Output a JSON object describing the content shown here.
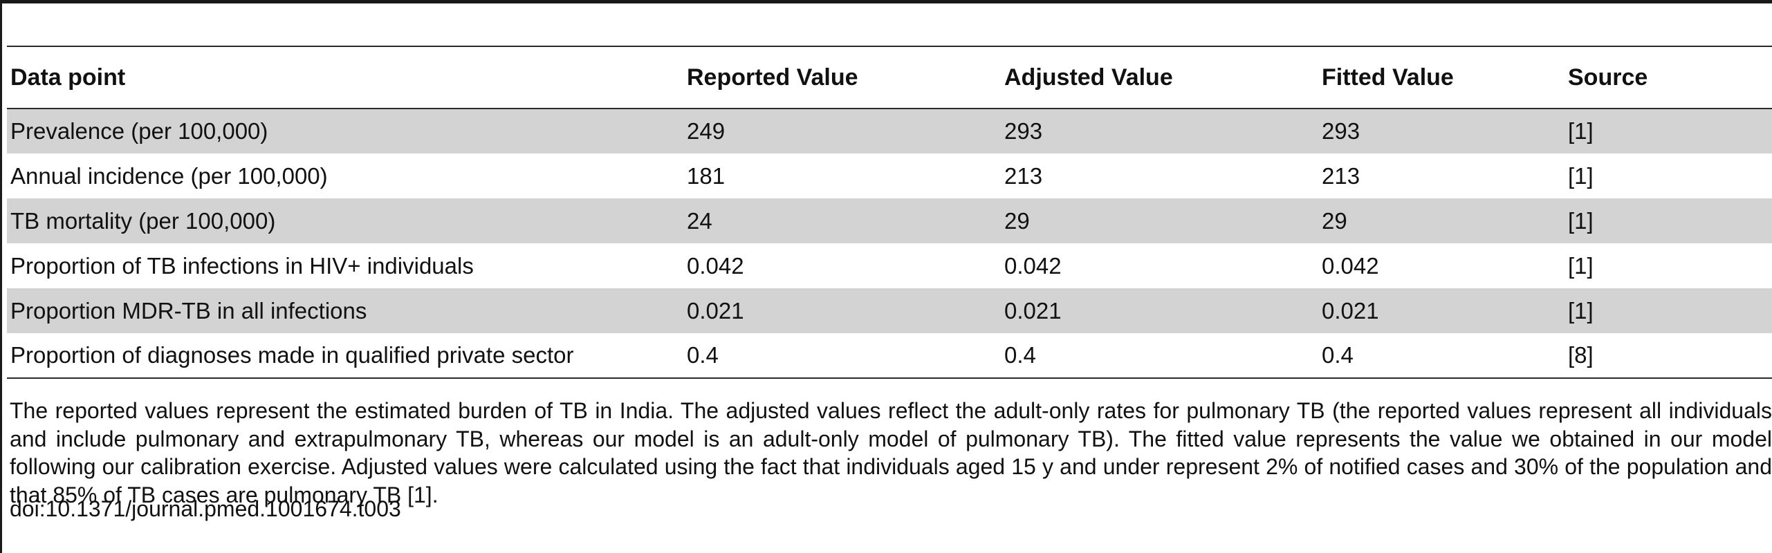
{
  "table": {
    "headers": [
      "Data point",
      "Reported Value",
      "Adjusted Value",
      "Fitted Value",
      "Source"
    ],
    "rows": [
      {
        "data_point": "Prevalence (per 100,000)",
        "reported": "249",
        "adjusted": "293",
        "fitted": "293",
        "source": "[1]"
      },
      {
        "data_point": "Annual incidence (per 100,000)",
        "reported": "181",
        "adjusted": "213",
        "fitted": "213",
        "source": "[1]"
      },
      {
        "data_point": "TB mortality (per 100,000)",
        "reported": "24",
        "adjusted": "29",
        "fitted": "29",
        "source": "[1]"
      },
      {
        "data_point": "Proportion of TB infections in HIV+ individuals",
        "reported": "0.042",
        "adjusted": "0.042",
        "fitted": "0.042",
        "source": "[1]"
      },
      {
        "data_point": "Proportion MDR-TB in all infections",
        "reported": "0.021",
        "adjusted": "0.021",
        "fitted": "0.021",
        "source": "[1]"
      },
      {
        "data_point": "Proportion of diagnoses made in qualified private sector",
        "reported": "0.4",
        "adjusted": "0.4",
        "fitted": "0.4",
        "source": "[8]"
      }
    ]
  },
  "footnote": "The reported values represent the estimated burden of TB in India. The adjusted values reflect the adult-only rates for pulmonary TB (the reported values represent all individuals and include pulmonary and extrapulmonary TB, whereas our model is an adult-only model of pulmonary TB). The fitted value represents the value we obtained in our model following our calibration exercise. Adjusted values were calculated using the fact that individuals aged 15 y and under represent 2% of notified cases and 30% of the population and that 85% of TB cases are pulmonary TB [1].",
  "doi": "doi:10.1371/journal.pmed.1001674.t003"
}
